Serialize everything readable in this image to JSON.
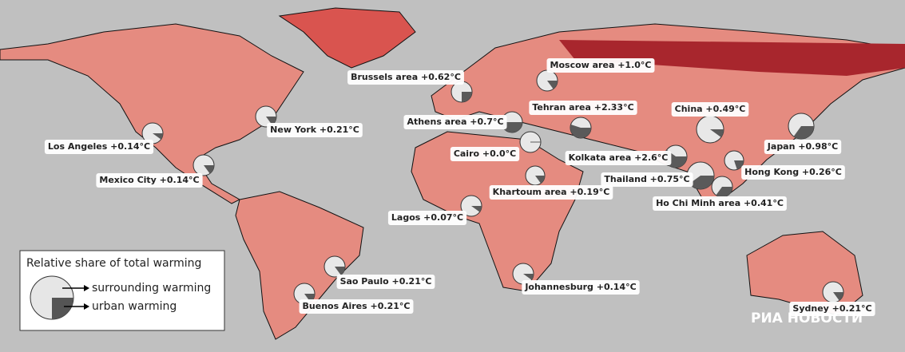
{
  "legend": {
    "title": "Relative share of total warming",
    "surrounding": "surrounding warming",
    "urban": "urban warming"
  },
  "watermark": "РИА НОВОСТИ",
  "cities": [
    {
      "label": "Brussels area +0.62°C",
      "urban_share": 25
    },
    {
      "label": "Moscow area +1.0°C",
      "urban_share": 15
    },
    {
      "label": "Athens area +0.7°C",
      "urban_share": 50
    },
    {
      "label": "Tehran area +2.33°C",
      "urban_share": 55
    },
    {
      "label": "China +0.49°C",
      "urban_share": 10
    },
    {
      "label": "Japan +0.98°C",
      "urban_share": 35
    },
    {
      "label": "New York +0.21°C",
      "urban_share": 15
    },
    {
      "label": "Los Angeles +0.14°C",
      "urban_share": 10
    },
    {
      "label": "Mexico City +0.14°C",
      "urban_share": 15
    },
    {
      "label": "Cairo +0.0°C",
      "urban_share": 0
    },
    {
      "label": "Kolkata area +2.6°C",
      "urban_share": 60
    },
    {
      "label": "Thailand +0.75°C",
      "urban_share": 40
    },
    {
      "label": "Hong Kong +0.26°C",
      "urban_share": 20
    },
    {
      "label": "Ho Chi Minh area +0.41°C",
      "urban_share": 35
    },
    {
      "label": "Khartoum area +0.19°C",
      "urban_share": 15
    },
    {
      "label": "Lagos +0.07°C",
      "urban_share": 10
    },
    {
      "label": "Sao Paulo +0.21°C",
      "urban_share": 15
    },
    {
      "label": "Buenos Aires +0.21°C",
      "urban_share": 15
    },
    {
      "label": "Johannesburg +0.14°C",
      "urban_share": 10
    },
    {
      "label": "Sydney +0.21°C",
      "urban_share": 15
    }
  ]
}
